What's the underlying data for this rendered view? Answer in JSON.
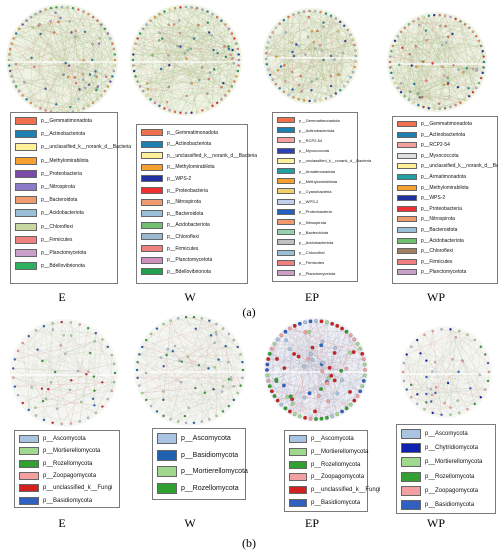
{
  "panel_a": {
    "label": "(a)",
    "networks": [
      {
        "caption": "E",
        "legend": [
          {
            "label": "p__Gemmatimonadota",
            "color": "#f07050"
          },
          {
            "label": "p__Actinobacteriota",
            "color": "#1e80b0"
          },
          {
            "label": "p__unclassified_k__norank_d__Bacteria",
            "color": "#fff09a"
          },
          {
            "label": "p__Methylomirabilota",
            "color": "#f5a030"
          },
          {
            "label": "p__Proteobacteria",
            "color": "#7a4aa8"
          },
          {
            "label": "p__Nitrospirota",
            "color": "#8a7ac8"
          },
          {
            "label": "p__Bacteroidota",
            "color": "#f09a70"
          },
          {
            "label": "p__Acidobacteriota",
            "color": "#9ac0d8"
          },
          {
            "label": "p__Chloroflexi",
            "color": "#c8d8a0"
          },
          {
            "label": "p__Firmicutes",
            "color": "#f08080"
          },
          {
            "label": "p__Planctomycetota",
            "color": "#c8a0c8"
          },
          {
            "label": "p__Bdellovibrionota",
            "color": "#2db060"
          }
        ]
      },
      {
        "caption": "W",
        "legend": [
          {
            "label": "p__Gemmatimonadota",
            "color": "#f07050"
          },
          {
            "label": "p__Actinobacteriota",
            "color": "#1e80b0"
          },
          {
            "label": "p__unclassified_k__norank_d__Bacteria",
            "color": "#fff09a"
          },
          {
            "label": "p__Methylomirabilota",
            "color": "#f5a030"
          },
          {
            "label": "p__WPS-2",
            "color": "#2030a0"
          },
          {
            "label": "p__Proteobacteria",
            "color": "#f03030"
          },
          {
            "label": "p__Nitrospirota",
            "color": "#f09a70"
          },
          {
            "label": "p__Bacteroidota",
            "color": "#9ac0d8"
          },
          {
            "label": "p__Acidobacteriota",
            "color": "#70c070"
          },
          {
            "label": "p__Chloroflexi",
            "color": "#9ab8d0"
          },
          {
            "label": "p__Firmicutes",
            "color": "#f08080"
          },
          {
            "label": "p__Planctomycetota",
            "color": "#d090c0"
          },
          {
            "label": "p__Bdellovibrionota",
            "color": "#20a050"
          }
        ]
      },
      {
        "caption": "EP",
        "legend": [
          {
            "label": "p__Gemmatimonadota",
            "color": "#f07050"
          },
          {
            "label": "p__Actinobacteriota",
            "color": "#1e80b0"
          },
          {
            "label": "p__RCP2-54",
            "color": "#f4a0a0"
          },
          {
            "label": "p__Myxococcota",
            "color": "#3040b0"
          },
          {
            "label": "p__unclassified_k__norank_d__Bacteria",
            "color": "#fff09a"
          },
          {
            "label": "p__Armatimonadota",
            "color": "#20a0a0"
          },
          {
            "label": "p__Methylomirabilota",
            "color": "#f5a030"
          },
          {
            "label": "p__Cyanobacteria",
            "color": "#f0d070"
          },
          {
            "label": "p__WPS-2",
            "color": "#c0d0e8"
          },
          {
            "label": "p__Proteobacteria",
            "color": "#2060c0"
          },
          {
            "label": "p__Nitrospirota",
            "color": "#f09a70"
          },
          {
            "label": "p__Bacteroidota",
            "color": "#9ad0b0"
          },
          {
            "label": "p__Acidobacteriota",
            "color": "#c0c0c0"
          },
          {
            "label": "p__Chloroflexi",
            "color": "#9ac0d8"
          },
          {
            "label": "p__Firmicutes",
            "color": "#f08080"
          },
          {
            "label": "p__Planctomycetota",
            "color": "#c8a0c8"
          }
        ]
      },
      {
        "caption": "WP",
        "legend": [
          {
            "label": "p__Gemmatimonadota",
            "color": "#f07050"
          },
          {
            "label": "p__Actinobacteriota",
            "color": "#1e80b0"
          },
          {
            "label": "p__RCP2-54",
            "color": "#f4a0a0"
          },
          {
            "label": "p__Myxococcota",
            "color": "#e0e0e0"
          },
          {
            "label": "p__unclassified_k__norank_d__Bacteria",
            "color": "#fff09a"
          },
          {
            "label": "p__Armatimonadota",
            "color": "#20a0a0"
          },
          {
            "label": "p__Methylomirabilota",
            "color": "#f5a030"
          },
          {
            "label": "p__WPS-2",
            "color": "#2030a0"
          },
          {
            "label": "p__Proteobacteria",
            "color": "#f03030"
          },
          {
            "label": "p__Nitrospirota",
            "color": "#f09a70"
          },
          {
            "label": "p__Bacteroidota",
            "color": "#9ac0d8"
          },
          {
            "label": "p__Acidobacteriota",
            "color": "#70c070"
          },
          {
            "label": "p__Chloroflexi",
            "color": "#a08060"
          },
          {
            "label": "p__Firmicutes",
            "color": "#f08080"
          },
          {
            "label": "p__Planctomycetota",
            "color": "#c8a0c8"
          }
        ]
      }
    ]
  },
  "panel_b": {
    "label": "(b)",
    "networks": [
      {
        "caption": "E",
        "legend": [
          {
            "label": "p__Ascomycota",
            "color": "#a8c4e0"
          },
          {
            "label": "p__Mortierellomycota",
            "color": "#a0d890"
          },
          {
            "label": "p__Rozellomycota",
            "color": "#30a030"
          },
          {
            "label": "p__Zoopagomycota",
            "color": "#f4a0a0"
          },
          {
            "label": "p__unclassified_k__Fungi",
            "color": "#d02020"
          },
          {
            "label": "p__Basidiomycota",
            "color": "#3060c0"
          }
        ]
      },
      {
        "caption": "W",
        "legend": [
          {
            "label": "p__Ascomycota",
            "color": "#a8c4e0"
          },
          {
            "label": "p__Basidiomycota",
            "color": "#2060b0"
          },
          {
            "label": "p__Mortierellomycota",
            "color": "#a0d890"
          },
          {
            "label": "p__Rozellomycota",
            "color": "#30a030"
          }
        ]
      },
      {
        "caption": "EP",
        "legend": [
          {
            "label": "p__Ascomycota",
            "color": "#a8c4e0"
          },
          {
            "label": "p__Mortierellomycota",
            "color": "#a0d890"
          },
          {
            "label": "p__Rozellomycota",
            "color": "#30a030"
          },
          {
            "label": "p__Zoopagomycota",
            "color": "#f4a0a0"
          },
          {
            "label": "p__unclassified_k__Fungi",
            "color": "#d02020"
          },
          {
            "label": "p__Basidiomycota",
            "color": "#3060c0"
          }
        ]
      },
      {
        "caption": "WP",
        "legend": [
          {
            "label": "p__Ascomycota",
            "color": "#a8c4e0"
          },
          {
            "label": "p__Chytridiomycota",
            "color": "#1020b0"
          },
          {
            "label": "p__Mortierellomycota",
            "color": "#a0d890"
          },
          {
            "label": "p__Rozellomycota",
            "color": "#30a030"
          },
          {
            "label": "p__Zoopagomycota",
            "color": "#f4a0a0"
          },
          {
            "label": "p__Basidiomycota",
            "color": "#3060c0"
          }
        ]
      }
    ]
  }
}
